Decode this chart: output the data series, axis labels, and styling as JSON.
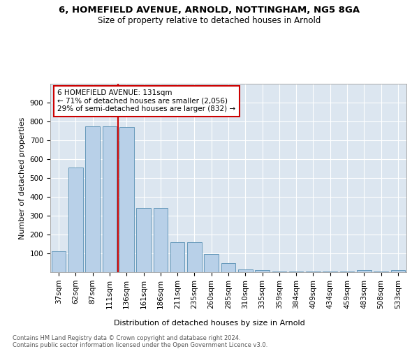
{
  "title1": "6, HOMEFIELD AVENUE, ARNOLD, NOTTINGHAM, NG5 8GA",
  "title2": "Size of property relative to detached houses in Arnold",
  "xlabel": "Distribution of detached houses by size in Arnold",
  "ylabel": "Number of detached properties",
  "categories": [
    "37sqm",
    "62sqm",
    "87sqm",
    "111sqm",
    "136sqm",
    "161sqm",
    "186sqm",
    "211sqm",
    "235sqm",
    "260sqm",
    "285sqm",
    "310sqm",
    "335sqm",
    "359sqm",
    "384sqm",
    "409sqm",
    "434sqm",
    "459sqm",
    "483sqm",
    "508sqm",
    "533sqm"
  ],
  "values": [
    110,
    555,
    775,
    775,
    770,
    340,
    340,
    160,
    160,
    95,
    50,
    15,
    10,
    5,
    5,
    5,
    5,
    5,
    10,
    5,
    10
  ],
  "bar_color": "#b8d0e8",
  "bar_edge_color": "#6699bb",
  "vline_color": "#cc0000",
  "annotation_text": "6 HOMEFIELD AVENUE: 131sqm\n← 71% of detached houses are smaller (2,056)\n29% of semi-detached houses are larger (832) →",
  "annotation_box_facecolor": "#ffffff",
  "annotation_box_edgecolor": "#cc0000",
  "ylim": [
    0,
    1000
  ],
  "yticks": [
    0,
    100,
    200,
    300,
    400,
    500,
    600,
    700,
    800,
    900,
    1000
  ],
  "background_color": "#dce6f0",
  "grid_color": "#ffffff",
  "footer_text": "Contains HM Land Registry data © Crown copyright and database right 2024.\nContains public sector information licensed under the Open Government Licence v3.0.",
  "title1_fontsize": 9.5,
  "title2_fontsize": 8.5,
  "xlabel_fontsize": 8,
  "ylabel_fontsize": 8,
  "tick_fontsize": 7.5,
  "annot_fontsize": 7.5,
  "footer_fontsize": 6.0
}
